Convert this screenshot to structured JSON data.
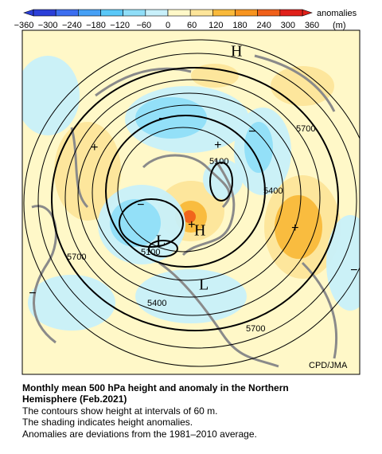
{
  "colorbar": {
    "ticks": [
      "−360",
      "−300",
      "−240",
      "−180",
      "−120",
      "−60",
      "0",
      "60",
      "120",
      "180",
      "240",
      "300",
      "360"
    ],
    "colors": [
      "#2b3fd8",
      "#3c6ef0",
      "#46a0f5",
      "#5ac8f8",
      "#8fdef8",
      "#c8f0fa",
      "#fff8c8",
      "#fde59a",
      "#f9b93a",
      "#f7941f",
      "#f0601a",
      "#e0201a"
    ],
    "label": "anomalies",
    "unit": "(m)"
  },
  "map": {
    "contour_labels": [
      "5700",
      "5100",
      "5400",
      "5700",
      "5100",
      "5400",
      "5700"
    ],
    "centers": [
      "H",
      "H",
      "L",
      "L"
    ],
    "signs": [
      "+",
      "+",
      "+",
      "+",
      "−",
      "−",
      "−",
      "−",
      "−"
    ],
    "credit": "CPD/JMA"
  },
  "caption": {
    "title_lines": [
      "Monthly mean 500 hPa height and anomaly in the Northern",
      "Hemisphere (Feb.2021)"
    ],
    "lines": [
      "The contours show height at intervals of 60 m.",
      "The shading indicates height anomalies.",
      "Anomalies are deviations from the 1981–2010 average."
    ]
  }
}
